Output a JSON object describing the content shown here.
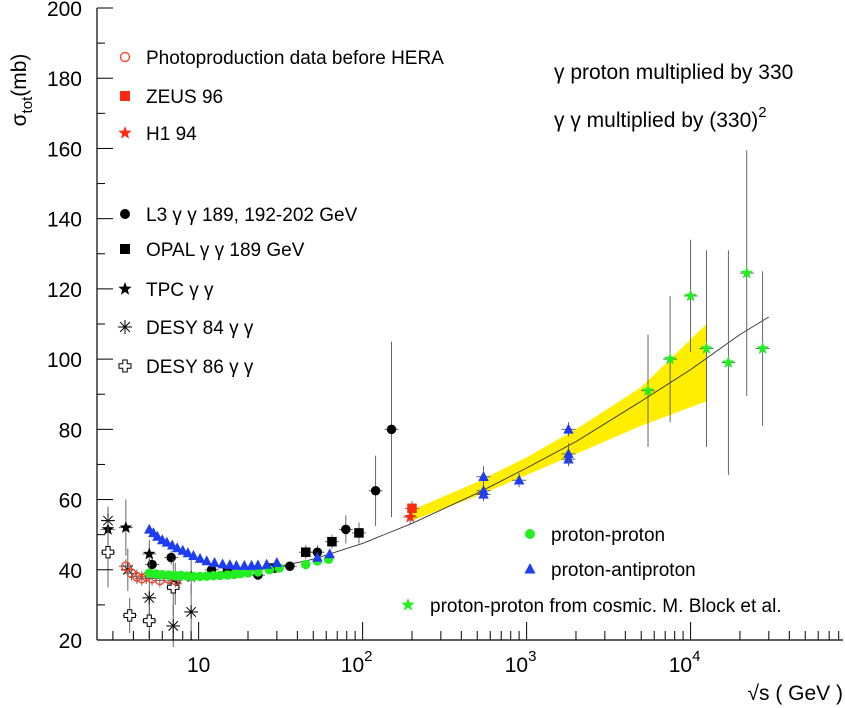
{
  "chart_data": {
    "type": "scatter",
    "xscale": "log",
    "xlim": [
      2.4,
      85000
    ],
    "ylim": [
      20,
      200
    ],
    "ylabel_main": "σ",
    "ylabel_sub": "tot",
    "ylabel_unit": "(mb)",
    "xlabel": "√s  ( GeV )",
    "yticks": [
      20,
      40,
      60,
      80,
      100,
      120,
      140,
      160,
      180,
      200
    ],
    "xticks": [
      {
        "value": 10,
        "base": "10",
        "exp": ""
      },
      {
        "value": 100,
        "base": "10",
        "exp": "2"
      },
      {
        "value": 1000,
        "base": "10",
        "exp": "3"
      },
      {
        "value": 10000,
        "base": "10",
        "exp": "4"
      }
    ],
    "annotations": [
      {
        "text": "γ proton multiplied by 330",
        "sup": ""
      },
      {
        "text": "γ γ multiplied by (330)",
        "sup": "2"
      }
    ],
    "legend_left": [
      {
        "symbol": "open-circle",
        "color": "#ff3b1f",
        "label": "Photoproduction data before HERA"
      },
      {
        "symbol": "square",
        "color": "#ff2a10",
        "label": "ZEUS 96"
      },
      {
        "symbol": "star",
        "color": "#ff2a10",
        "label": "H1 94"
      },
      {
        "symbol": "circle",
        "color": "#000000",
        "label": "L3 γ γ  189, 192-202 GeV"
      },
      {
        "symbol": "square",
        "color": "#000000",
        "label": "OPAL γ γ 189 GeV"
      },
      {
        "symbol": "star",
        "color": "#000000",
        "label": "TPC γ γ"
      },
      {
        "symbol": "asterisk",
        "color": "#000000",
        "label": "DESY 84 γ γ"
      },
      {
        "symbol": "open-cross",
        "color": "#000000",
        "label": "DESY 86 γ γ"
      }
    ],
    "legend_right": [
      {
        "symbol": "circle",
        "color": "#22ee22",
        "label": "proton-proton"
      },
      {
        "symbol": "triangle",
        "color": "#1e3cf0",
        "label": "proton-antiproton"
      },
      {
        "symbol": "star",
        "color": "#22ee22",
        "label": "proton-proton from cosmic. M. Block et al."
      }
    ],
    "band": {
      "color": "#ffee00",
      "x": [
        200,
        500,
        1000,
        2000,
        5000,
        12500
      ],
      "lower": [
        54,
        61,
        67,
        73,
        81,
        88
      ],
      "upper": [
        57,
        65,
        72,
        80,
        92,
        110
      ]
    },
    "fit_curve": {
      "x": [
        5,
        7,
        10,
        15,
        20,
        30,
        50,
        100,
        200,
        500,
        1000,
        2000,
        5000,
        10000,
        20000,
        30000
      ],
      "y": [
        38.5,
        38.3,
        38.4,
        38.9,
        39.5,
        40.8,
        43.0,
        47.5,
        53.2,
        61.8,
        69.0,
        76.5,
        88.0,
        97.0,
        107.0,
        112.0
      ]
    },
    "series": [
      {
        "name": "L3 γ γ  189, 192-202 GeV",
        "symbol": "circle",
        "color": "#000000",
        "points": [
          {
            "x": 5.2,
            "y": 41.5,
            "e": 2
          },
          {
            "x": 6.8,
            "y": 43.5,
            "e": 2
          },
          {
            "x": 12,
            "y": 40,
            "e": 1
          },
          {
            "x": 23,
            "y": 38.5,
            "e": 1
          },
          {
            "x": 36,
            "y": 41,
            "e": 1
          },
          {
            "x": 53,
            "y": 45,
            "e": 2
          },
          {
            "x": 79,
            "y": 51.5,
            "e": 4
          },
          {
            "x": 120,
            "y": 62.5,
            "e": 10
          },
          {
            "x": 150,
            "y": 80,
            "e": 25
          }
        ]
      },
      {
        "name": "OPAL γ γ 189 GeV",
        "symbol": "square",
        "color": "#000000",
        "points": [
          {
            "x": 15,
            "y": 39.5,
            "e": 1
          },
          {
            "x": 28,
            "y": 40.5,
            "e": 1
          },
          {
            "x": 45,
            "y": 45,
            "e": 2
          },
          {
            "x": 65,
            "y": 48,
            "e": 2
          },
          {
            "x": 95,
            "y": 50.5,
            "e": 3
          }
        ]
      },
      {
        "name": "TPC γ γ",
        "symbol": "star",
        "color": "#000000",
        "points": [
          {
            "x": 2.8,
            "y": 51.5,
            "e": 6
          },
          {
            "x": 3.6,
            "y": 52,
            "e": 8
          },
          {
            "x": 5.0,
            "y": 44.5,
            "e": 4
          },
          {
            "x": 7.2,
            "y": 36,
            "e": 6
          },
          {
            "x": 9.0,
            "y": 38,
            "e": 5
          }
        ]
      },
      {
        "name": "DESY 84 γ γ",
        "symbol": "asterisk",
        "color": "#000000",
        "points": [
          {
            "x": 2.8,
            "y": 54,
            "e": 4
          },
          {
            "x": 3.7,
            "y": 40,
            "e": 6
          },
          {
            "x": 5.0,
            "y": 32,
            "e": 7
          },
          {
            "x": 7.0,
            "y": 24,
            "e": 6
          },
          {
            "x": 9.0,
            "y": 28,
            "e": 8
          }
        ]
      },
      {
        "name": "DESY 86 γ γ",
        "symbol": "open-cross",
        "color": "#000000",
        "points": [
          {
            "x": 2.8,
            "y": 45,
            "e": 10
          },
          {
            "x": 3.8,
            "y": 27,
            "e": 5
          },
          {
            "x": 5.0,
            "y": 25.5,
            "e": 5
          },
          {
            "x": 7.0,
            "y": 35,
            "e": 8
          }
        ]
      },
      {
        "name": "Photoproduction data before HERA",
        "symbol": "open-circle",
        "color": "#ff3b1f",
        "points": [
          {
            "x": 3.6,
            "y": 41,
            "e": 2
          },
          {
            "x": 3.9,
            "y": 39,
            "e": 2
          },
          {
            "x": 4.2,
            "y": 38,
            "e": 2
          },
          {
            "x": 4.5,
            "y": 37.5,
            "e": 2
          },
          {
            "x": 4.8,
            "y": 38,
            "e": 2
          },
          {
            "x": 5.2,
            "y": 37.5,
            "e": 2
          },
          {
            "x": 5.8,
            "y": 37,
            "e": 2
          },
          {
            "x": 6.5,
            "y": 37.5,
            "e": 2
          },
          {
            "x": 7.2,
            "y": 37,
            "e": 2
          }
        ]
      },
      {
        "name": "ZEUS 96",
        "symbol": "square",
        "color": "#ff2a10",
        "points": [
          {
            "x": 200,
            "y": 57.5,
            "e": 2
          }
        ]
      },
      {
        "name": "H1 94",
        "symbol": "star",
        "color": "#ff2a10",
        "points": [
          {
            "x": 195,
            "y": 55,
            "e": 2
          }
        ]
      },
      {
        "name": "proton-proton",
        "symbol": "circle",
        "color": "#22ee22",
        "points": [
          {
            "x": 5.0,
            "y": 39
          },
          {
            "x": 5.5,
            "y": 38.8
          },
          {
            "x": 6.0,
            "y": 38.6
          },
          {
            "x": 6.6,
            "y": 38.5
          },
          {
            "x": 7.2,
            "y": 38.3
          },
          {
            "x": 7.8,
            "y": 38.4
          },
          {
            "x": 8.5,
            "y": 38.2
          },
          {
            "x": 9.3,
            "y": 38.1
          },
          {
            "x": 10.2,
            "y": 38.1
          },
          {
            "x": 11.2,
            "y": 38.2
          },
          {
            "x": 12.3,
            "y": 38.3
          },
          {
            "x": 13.5,
            "y": 38.4
          },
          {
            "x": 15,
            "y": 38.5
          },
          {
            "x": 16.5,
            "y": 38.7
          },
          {
            "x": 18,
            "y": 38.9
          },
          {
            "x": 20,
            "y": 39.1
          },
          {
            "x": 23,
            "y": 39.4
          },
          {
            "x": 27,
            "y": 40
          },
          {
            "x": 31,
            "y": 40.5
          },
          {
            "x": 45,
            "y": 41.5
          },
          {
            "x": 53,
            "y": 42.5
          },
          {
            "x": 62,
            "y": 43
          }
        ]
      },
      {
        "name": "proton-antiproton",
        "symbol": "triangle",
        "color": "#1e3cf0",
        "points": [
          {
            "x": 5.0,
            "y": 51.5
          },
          {
            "x": 5.3,
            "y": 50.5
          },
          {
            "x": 5.6,
            "y": 49.5
          },
          {
            "x": 6.0,
            "y": 48.5
          },
          {
            "x": 6.4,
            "y": 47.8
          },
          {
            "x": 6.9,
            "y": 47
          },
          {
            "x": 7.4,
            "y": 46.2
          },
          {
            "x": 8.0,
            "y": 45.5
          },
          {
            "x": 8.6,
            "y": 44.8
          },
          {
            "x": 9.3,
            "y": 44
          },
          {
            "x": 10.2,
            "y": 43.2
          },
          {
            "x": 11.2,
            "y": 42.5
          },
          {
            "x": 12.5,
            "y": 42
          },
          {
            "x": 14,
            "y": 41.6
          },
          {
            "x": 15.5,
            "y": 41.4
          },
          {
            "x": 17,
            "y": 41.2
          },
          {
            "x": 19,
            "y": 41.2
          },
          {
            "x": 21,
            "y": 41.2
          },
          {
            "x": 23,
            "y": 41.3
          },
          {
            "x": 26,
            "y": 41.5
          },
          {
            "x": 30,
            "y": 42
          },
          {
            "x": 53,
            "y": 43.5
          },
          {
            "x": 63,
            "y": 44.5
          },
          {
            "x": 546,
            "y": 61.5,
            "e": 2
          },
          {
            "x": 546,
            "y": 62.5,
            "e": 2
          },
          {
            "x": 546,
            "y": 66.5,
            "e": 3
          },
          {
            "x": 900,
            "y": 65.5,
            "e": 2
          },
          {
            "x": 1800,
            "y": 71.5,
            "e": 2
          },
          {
            "x": 1800,
            "y": 73,
            "e": 3
          },
          {
            "x": 1800,
            "y": 80,
            "e": 2
          }
        ]
      },
      {
        "name": "proton-proton from cosmic. M. Block et al.",
        "symbol": "star",
        "color": "#22ee22",
        "points": [
          {
            "x": 5500,
            "y": 91,
            "e": 16
          },
          {
            "x": 7500,
            "y": 100,
            "e": 18
          },
          {
            "x": 10000,
            "y": 118,
            "e": 16
          },
          {
            "x": 12500,
            "y": 103,
            "e": 28
          },
          {
            "x": 17000,
            "y": 99,
            "e": 32
          },
          {
            "x": 22000,
            "y": 124.5,
            "e": 35
          },
          {
            "x": 27500,
            "y": 103,
            "e": 22
          }
        ]
      }
    ]
  }
}
